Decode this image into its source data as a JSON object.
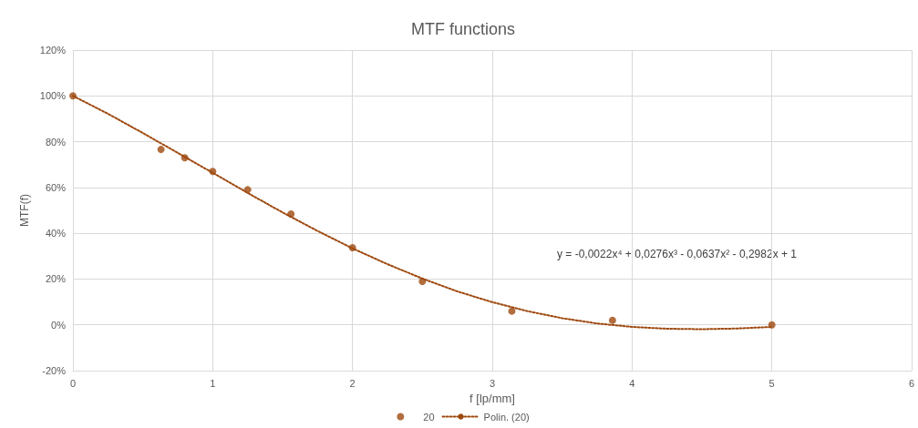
{
  "chart_data": {
    "type": "scatter",
    "title": "MTF functions",
    "xlabel": "f [lp/mm]",
    "ylabel": "MTF(f)",
    "xlim": [
      0,
      6
    ],
    "xticks": [
      0,
      1,
      2,
      3,
      4,
      5,
      6
    ],
    "ylim": [
      -20,
      120
    ],
    "yticks": [
      {
        "value": -20,
        "label": "-20%"
      },
      {
        "value": 0,
        "label": "0%"
      },
      {
        "value": 20,
        "label": "20%"
      },
      {
        "value": 40,
        "label": "40%"
      },
      {
        "value": 60,
        "label": "60%"
      },
      {
        "value": 80,
        "label": "80%"
      },
      {
        "value": 100,
        "label": "100%"
      },
      {
        "value": 120,
        "label": "120%"
      }
    ],
    "grid": true,
    "legend": "bottom",
    "annotations": [
      "y = -0,0022x⁴ + 0,0276x³ - 0,0637x² - 0,2982x + 1"
    ],
    "series": [
      {
        "name": "20",
        "color": "#9e480e",
        "marker": "circle",
        "x": [
          0,
          0.63,
          0.8,
          1,
          1.25,
          1.56,
          2,
          2.5,
          3.14,
          3.86,
          5
        ],
        "values": [
          100,
          76.6,
          73,
          67,
          59,
          48.4,
          33.7,
          19,
          6,
          2,
          0
        ]
      },
      {
        "name": "Polin. (20)",
        "type": "line",
        "color": "#9e480e",
        "marker": "none",
        "line_style": "dotted",
        "x": [
          0,
          0.25,
          0.5,
          0.75,
          1,
          1.25,
          1.5,
          1.75,
          2,
          2.25,
          2.5,
          2.75,
          3,
          3.25,
          3.5,
          3.75,
          4,
          4.25,
          4.5,
          4.75,
          5
        ],
        "values": [
          100,
          92.2,
          83.8,
          75.1,
          66.4,
          57.6,
          49.1,
          41,
          33.4,
          26.5,
          20.2,
          14.6,
          9.9,
          6,
          2.9,
          0.6,
          -0.9,
          -1.7,
          -1.9,
          -1.6,
          -0.9
        ]
      }
    ]
  }
}
